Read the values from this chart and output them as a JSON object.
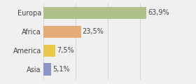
{
  "categories": [
    "Europa",
    "Africa",
    "America",
    "Asia"
  ],
  "values": [
    63.9,
    23.5,
    7.5,
    5.1
  ],
  "labels": [
    "63,9%",
    "23,5%",
    "7,5%",
    "5,1%"
  ],
  "bar_colors": [
    "#afc08a",
    "#e4aa78",
    "#e8c84a",
    "#8b95c9"
  ],
  "background_color": "#f0f0f0",
  "xlim": [
    0,
    78
  ],
  "bar_height": 0.65,
  "label_fontsize": 7.0,
  "category_fontsize": 7.0,
  "grid_color": "#cccccc"
}
